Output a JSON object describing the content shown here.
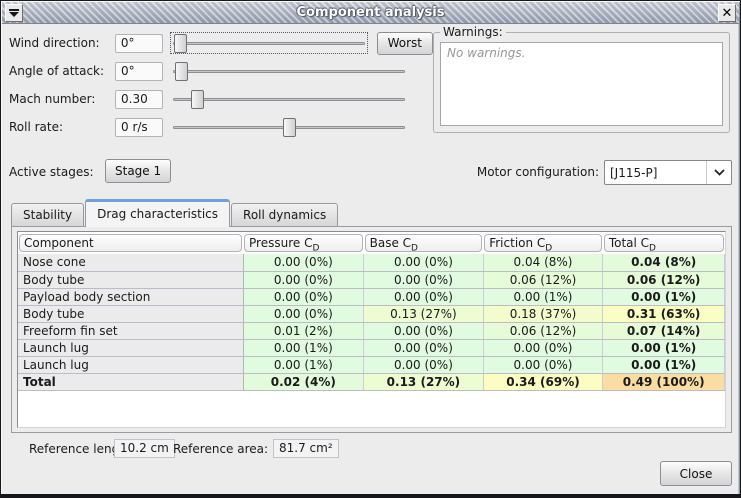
{
  "window": {
    "title": "Component analysis",
    "close_glyph": "✕"
  },
  "controls": [
    {
      "key": "wind-direction",
      "label": "Wind direction:",
      "value": "0°",
      "slider_percent": 2,
      "focused": true,
      "worst_label": "Worst"
    },
    {
      "key": "angle-of-attack",
      "label": "Angle of attack:",
      "value": "0°",
      "slider_percent": 2,
      "focused": false
    },
    {
      "key": "mach-number",
      "label": "Mach number:",
      "value": "0.30",
      "slider_percent": 9,
      "focused": false
    },
    {
      "key": "roll-rate",
      "label": "Roll rate:",
      "value": "0 r/s",
      "slider_percent": 50,
      "focused": false
    }
  ],
  "warnings": {
    "title": "Warnings:",
    "message": "No warnings."
  },
  "stages": {
    "label": "Active stages:",
    "buttons": [
      "Stage 1"
    ]
  },
  "motor": {
    "label": "Motor configuration:",
    "value": "[J115-P]"
  },
  "tabs": [
    {
      "label": "Stability",
      "selected": false
    },
    {
      "label": "Drag characteristics",
      "selected": true
    },
    {
      "label": "Roll dynamics",
      "selected": false
    }
  ],
  "drag_table": {
    "headers": [
      {
        "text": "Component"
      },
      {
        "text": "Pressure C",
        "sub": "D"
      },
      {
        "text": "Base C",
        "sub": "D"
      },
      {
        "text": "Friction C",
        "sub": "D"
      },
      {
        "text": "Total C",
        "sub": "D"
      }
    ],
    "rows": [
      {
        "component": "Nose cone",
        "bold": false,
        "cells": [
          {
            "text": "0.00 (0%)",
            "bg": "#e0fbdf"
          },
          {
            "text": "0.00 (0%)",
            "bg": "#e0fbdf"
          },
          {
            "text": "0.04 (8%)",
            "bg": "#e3fbdb"
          },
          {
            "text": "0.04 (8%)",
            "bg": "#e3fbdb"
          }
        ]
      },
      {
        "component": "Body tube",
        "bold": false,
        "cells": [
          {
            "text": "0.00 (0%)",
            "bg": "#e0fbdf"
          },
          {
            "text": "0.00 (0%)",
            "bg": "#e0fbdf"
          },
          {
            "text": "0.06 (12%)",
            "bg": "#e6fbd7"
          },
          {
            "text": "0.06 (12%)",
            "bg": "#e6fbd7"
          }
        ]
      },
      {
        "component": "Payload body section",
        "bold": false,
        "cells": [
          {
            "text": "0.00 (0%)",
            "bg": "#e0fbdf"
          },
          {
            "text": "0.00 (0%)",
            "bg": "#e0fbdf"
          },
          {
            "text": "0.00 (1%)",
            "bg": "#e0fbdf"
          },
          {
            "text": "0.00 (1%)",
            "bg": "#e0fbdf"
          }
        ]
      },
      {
        "component": "Body tube",
        "bold": false,
        "cells": [
          {
            "text": "0.00 (0%)",
            "bg": "#e0fbdf"
          },
          {
            "text": "0.13 (27%)",
            "bg": "#eefcd1"
          },
          {
            "text": "0.18 (37%)",
            "bg": "#f2fccd"
          },
          {
            "text": "0.31 (63%)",
            "bg": "#fafdc4"
          }
        ]
      },
      {
        "component": "Freeform fin set",
        "bold": false,
        "cells": [
          {
            "text": "0.01 (2%)",
            "bg": "#e1fbdd"
          },
          {
            "text": "0.00 (0%)",
            "bg": "#e0fbdf"
          },
          {
            "text": "0.06 (12%)",
            "bg": "#e6fbd7"
          },
          {
            "text": "0.07 (14%)",
            "bg": "#e7fbd6"
          }
        ]
      },
      {
        "component": "Launch lug",
        "bold": false,
        "cells": [
          {
            "text": "0.00 (1%)",
            "bg": "#e0fbdf"
          },
          {
            "text": "0.00 (0%)",
            "bg": "#e0fbdf"
          },
          {
            "text": "0.00 (0%)",
            "bg": "#e0fbdf"
          },
          {
            "text": "0.00 (1%)",
            "bg": "#e0fbdf"
          }
        ]
      },
      {
        "component": "Launch lug",
        "bold": false,
        "cells": [
          {
            "text": "0.00 (1%)",
            "bg": "#e0fbdf"
          },
          {
            "text": "0.00 (0%)",
            "bg": "#e0fbdf"
          },
          {
            "text": "0.00 (0%)",
            "bg": "#e0fbdf"
          },
          {
            "text": "0.00 (1%)",
            "bg": "#e0fbdf"
          }
        ]
      },
      {
        "component": "Total",
        "bold": true,
        "cells": [
          {
            "text": "0.02 (4%)",
            "bg": "#e3fbda"
          },
          {
            "text": "0.13 (27%)",
            "bg": "#eefcd1"
          },
          {
            "text": "0.34 (69%)",
            "bg": "#fbfdc3"
          },
          {
            "text": "0.49 (100%)",
            "bg": "#fbdda4"
          }
        ]
      }
    ]
  },
  "footer": {
    "ref_length_label": "Reference length:",
    "ref_length_value": "10.2 cm",
    "ref_area_label": "Reference area:",
    "ref_area_value": "81.7 cm²",
    "close_button": "Close"
  },
  "colors": {
    "tab_accent": "#6f9fdd",
    "titlebar_top": "#d2d6e0",
    "titlebar_bottom": "#9ba3b4",
    "component_cell_bg": "#ebebeb",
    "total_cell_bg": "#fbdda4"
  }
}
